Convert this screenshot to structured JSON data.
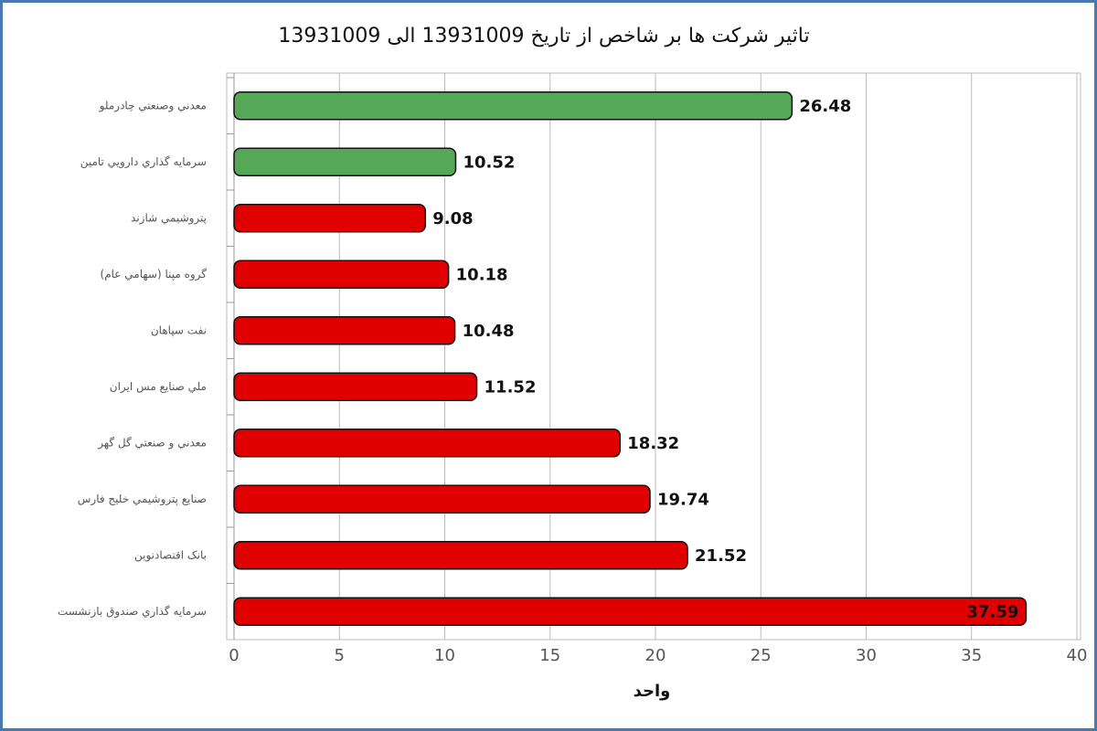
{
  "chart_data": {
    "type": "hbar",
    "title": "تاثیر شرکت ها بر شاخص از تاریخ 13931009 الی 13931009",
    "x_label": "واحد",
    "categories": [
      "معدني وصنعتي چادرملو",
      "سرمايه گذاري دارويي تامين",
      "پتروشيمي شازند",
      "گروه مپنا (سهامي عام)",
      "نفت سپاهان",
      "ملي صنايع مس ايران",
      "معدني و صنعتي گل گهر",
      "صنايع پتروشيمي خليج فارس",
      "بانک اقتصادنوين",
      "سرمايه گذاري صندوق بازنشست"
    ],
    "values": [
      26.48,
      10.52,
      9.08,
      10.18,
      10.48,
      11.52,
      18.32,
      19.74,
      21.52,
      37.59
    ],
    "colors": [
      "#55a855",
      "#55a855",
      "#e00000",
      "#e00000",
      "#e00000",
      "#e00000",
      "#e00000",
      "#e00000",
      "#e00000",
      "#e00000"
    ],
    "xlim": [
      0,
      40
    ],
    "xticks": [
      0,
      5,
      10,
      15,
      20,
      25,
      30,
      35,
      40
    ],
    "grid": true
  }
}
